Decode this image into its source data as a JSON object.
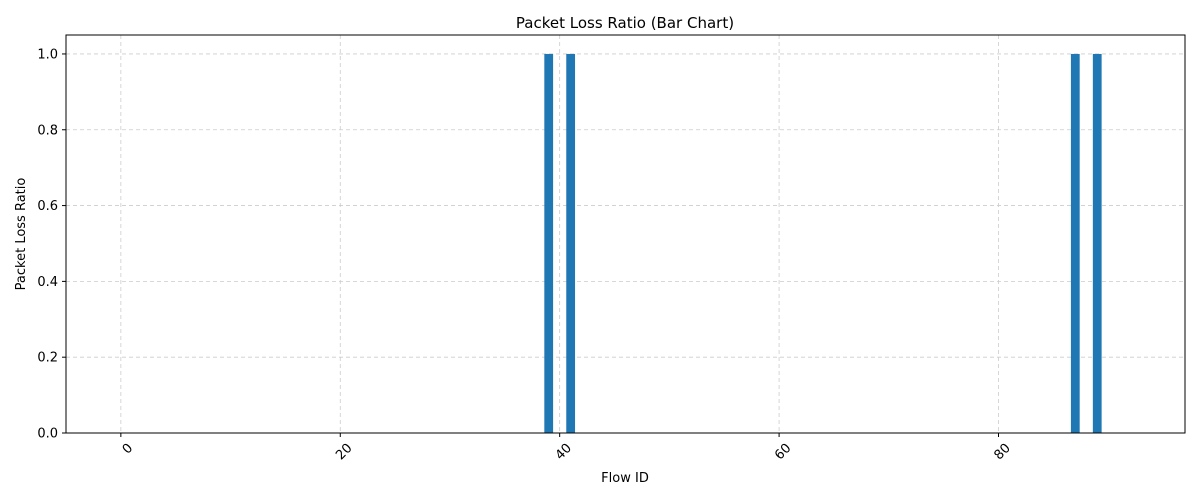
{
  "chart_data": {
    "type": "bar",
    "title": "Packet Loss Ratio (Bar Chart)",
    "xlabel": "Flow ID",
    "ylabel": "Packet Loss Ratio",
    "xlim": [
      -5,
      97
    ],
    "ylim": [
      0,
      1.05
    ],
    "xticks": [
      0,
      20,
      40,
      60,
      80
    ],
    "yticks": [
      0.0,
      0.2,
      0.4,
      0.6,
      0.8,
      1.0
    ],
    "ytick_labels": [
      "0.0",
      "0.2",
      "0.4",
      "0.6",
      "0.8",
      "1.0"
    ],
    "xtick_rotation": 45,
    "grid": true,
    "bar_color": "#1f77b4",
    "series": [
      {
        "x": [
          39,
          41,
          87,
          89
        ],
        "values": [
          1.0,
          1.0,
          1.0,
          1.0
        ]
      }
    ]
  }
}
